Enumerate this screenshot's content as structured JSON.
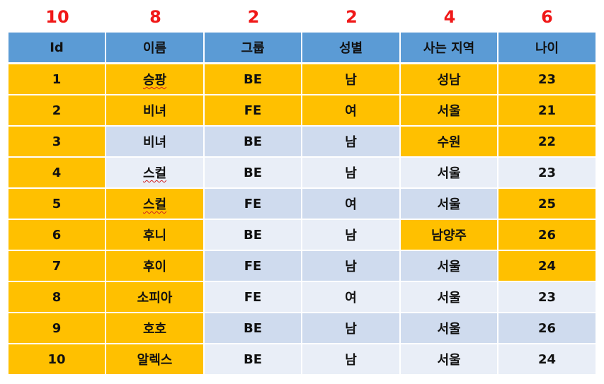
{
  "counts": [
    "10",
    "8",
    "2",
    "2",
    "4",
    "6"
  ],
  "headers": [
    "Id",
    "이름",
    "그룹",
    "성별",
    "사는 지역",
    "나이"
  ],
  "colors": {
    "header": "#5b9bd5",
    "highlight": "#ffc000",
    "row_dark": "#cfdbee",
    "row_light": "#e9eef7",
    "count_text": "#f01818"
  },
  "rows": [
    [
      "1",
      "승팡",
      "BE",
      "남",
      "성남",
      "23"
    ],
    [
      "2",
      "비녀",
      "FE",
      "여",
      "서울",
      "21"
    ],
    [
      "3",
      "비녀",
      "BE",
      "남",
      "수원",
      "22"
    ],
    [
      "4",
      "스컬",
      "BE",
      "남",
      "서울",
      "23"
    ],
    [
      "5",
      "스컬",
      "FE",
      "여",
      "서울",
      "25"
    ],
    [
      "6",
      "후니",
      "BE",
      "남",
      "남양주",
      "26"
    ],
    [
      "7",
      "후이",
      "FE",
      "남",
      "서울",
      "24"
    ],
    [
      "8",
      "소피아",
      "FE",
      "여",
      "서울",
      "23"
    ],
    [
      "9",
      "호호",
      "BE",
      "남",
      "서울",
      "26"
    ],
    [
      "10",
      "알렉스",
      "BE",
      "남",
      "서울",
      "24"
    ]
  ],
  "cell_fill": [
    [
      "highlight",
      "highlight",
      "highlight",
      "highlight",
      "highlight",
      "highlight"
    ],
    [
      "highlight",
      "highlight",
      "highlight",
      "highlight",
      "highlight",
      "highlight"
    ],
    [
      "highlight",
      "row_dark",
      "row_dark",
      "row_dark",
      "highlight",
      "highlight"
    ],
    [
      "highlight",
      "row_light",
      "row_light",
      "row_light",
      "row_light",
      "row_light"
    ],
    [
      "highlight",
      "highlight",
      "row_dark",
      "row_dark",
      "row_dark",
      "highlight"
    ],
    [
      "highlight",
      "highlight",
      "row_light",
      "row_light",
      "highlight",
      "highlight"
    ],
    [
      "highlight",
      "highlight",
      "row_dark",
      "row_dark",
      "row_dark",
      "highlight"
    ],
    [
      "highlight",
      "highlight",
      "row_light",
      "row_light",
      "row_light",
      "row_light"
    ],
    [
      "highlight",
      "highlight",
      "row_dark",
      "row_dark",
      "row_dark",
      "row_dark"
    ],
    [
      "highlight",
      "highlight",
      "row_light",
      "row_light",
      "row_light",
      "row_light"
    ]
  ],
  "spellcheck_cells": [
    [
      0,
      1
    ],
    [
      3,
      1
    ],
    [
      4,
      1
    ]
  ]
}
